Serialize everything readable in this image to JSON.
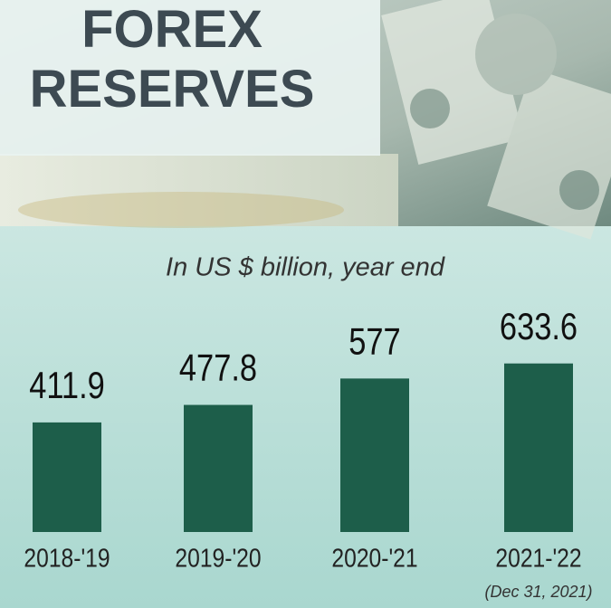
{
  "chart_data": {
    "type": "bar",
    "title": "FOREX RESERVES",
    "subtitle": "In US $ billion, year end",
    "categories": [
      "2018-'19",
      "2019-'20",
      "2020-'21",
      "2021-'22"
    ],
    "values": [
      411.9,
      477.8,
      577,
      633.6
    ],
    "color": "#1d5e4a",
    "annotation": "(Dec 31, 2021)"
  }
}
